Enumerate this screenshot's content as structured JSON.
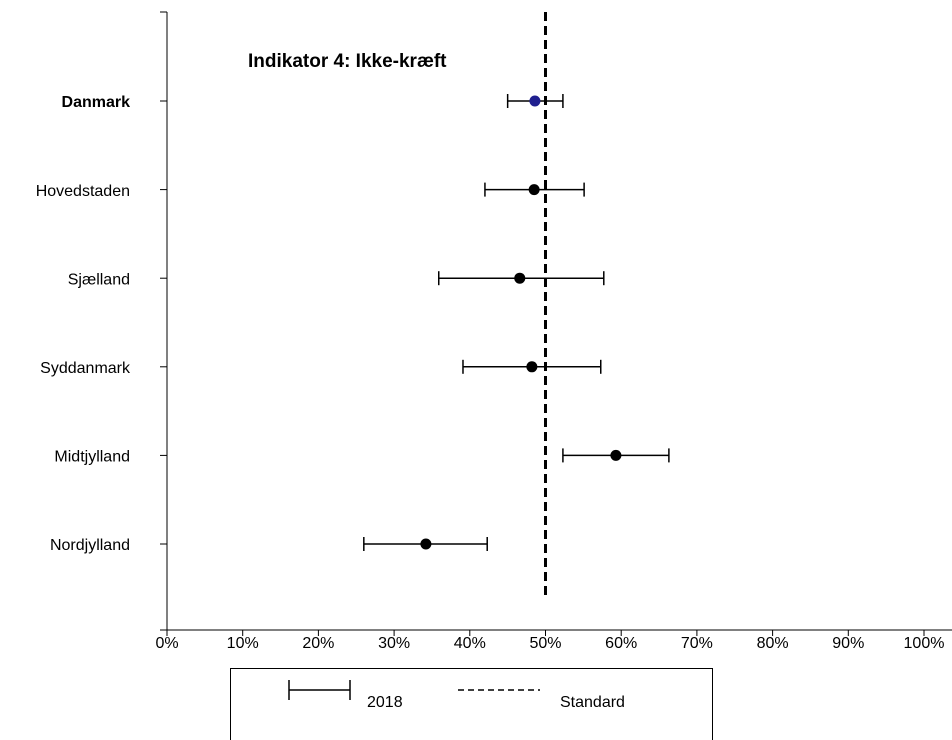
{
  "chart_data": {
    "type": "forest",
    "title": "Indikator 4: Ikke-kræft",
    "categories": [
      "Danmark",
      "Hovedstaden",
      "Sjælland",
      "Syddanmark",
      "Midtjylland",
      "Nordjylland"
    ],
    "series": [
      {
        "name": "2018",
        "color": "#000000",
        "point_colors": [
          "#1f1f8f",
          "#000000",
          "#000000",
          "#000000",
          "#000000",
          "#000000"
        ],
        "values": [
          48.6,
          48.5,
          46.6,
          48.2,
          59.3,
          34.2
        ],
        "lower": [
          45.0,
          42.0,
          35.9,
          39.1,
          52.3,
          26.0
        ],
        "upper": [
          52.3,
          55.1,
          57.7,
          57.3,
          66.3,
          42.3
        ]
      }
    ],
    "reference": {
      "name": "Standard",
      "value": 50
    },
    "xlim": [
      0,
      100
    ],
    "xticks": [
      {
        "value": 0,
        "label": "0%"
      },
      {
        "value": 10,
        "label": "10%"
      },
      {
        "value": 20,
        "label": "20%"
      },
      {
        "value": 30,
        "label": "30%"
      },
      {
        "value": 40,
        "label": "40%"
      },
      {
        "value": 50,
        "label": "50%"
      },
      {
        "value": 60,
        "label": "60%"
      },
      {
        "value": 70,
        "label": "70%"
      },
      {
        "value": 80,
        "label": "80%"
      },
      {
        "value": 90,
        "label": "90%"
      },
      {
        "value": 100,
        "label": "100%"
      }
    ]
  }
}
